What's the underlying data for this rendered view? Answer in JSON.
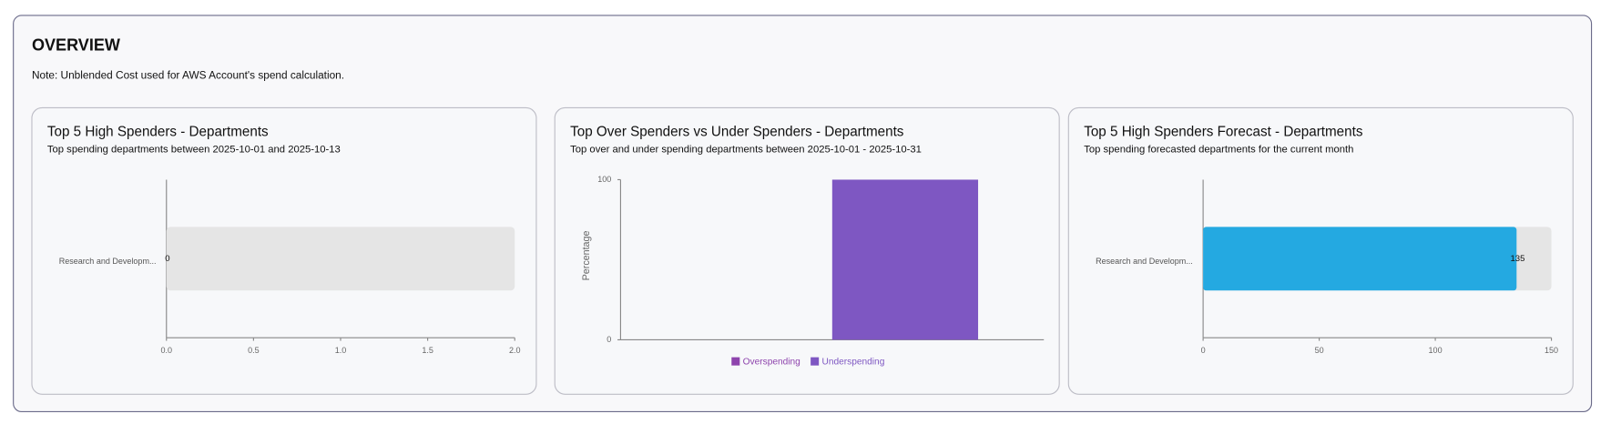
{
  "header": {
    "title": "OVERVIEW",
    "note": "Note: Unblended Cost used for AWS Account's spend calculation."
  },
  "chart_data": [
    {
      "type": "bar",
      "horizontal": true,
      "title": "Top 5 High Spenders - Departments",
      "subtitle": "Top spending departments between 2025-10-01 and 2025-10-13",
      "categories": [
        "Research and Developm..."
      ],
      "values": [
        0
      ],
      "value_labels": [
        "0"
      ],
      "color": "#24a9e1",
      "xlim": [
        0,
        2
      ],
      "xticks": [
        {
          "value": 0,
          "label": "0.0"
        },
        {
          "value": 0.5,
          "label": "0.5"
        },
        {
          "value": 1,
          "label": "1.0"
        },
        {
          "value": 1.5,
          "label": "1.5"
        },
        {
          "value": 2,
          "label": "2.0"
        }
      ]
    },
    {
      "type": "bar",
      "horizontal": false,
      "title": "Top Over Spenders vs Under Spenders - Departments",
      "subtitle": "Top over and under spending departments between 2025-10-01 - 2025-10-31",
      "categories": [
        null
      ],
      "ylabel": "Percentage",
      "series": [
        {
          "name": "Overspending",
          "color": "#8e44ad",
          "values": [
            0
          ]
        },
        {
          "name": "Underspending",
          "color": "#7e57c2",
          "values": [
            100
          ]
        }
      ],
      "ylim": [
        0,
        100
      ],
      "yticks": [
        0,
        100
      ]
    },
    {
      "type": "bar",
      "horizontal": true,
      "title": "Top 5 High Spenders Forecast - Departments",
      "subtitle": "Top spending forecasted departments for the current month",
      "categories": [
        "Research and Developm..."
      ],
      "values": [
        135
      ],
      "value_labels": [
        "135"
      ],
      "color": "#24a9e1",
      "xlim": [
        0,
        150
      ],
      "xticks": [
        0,
        50,
        100,
        150
      ]
    }
  ]
}
